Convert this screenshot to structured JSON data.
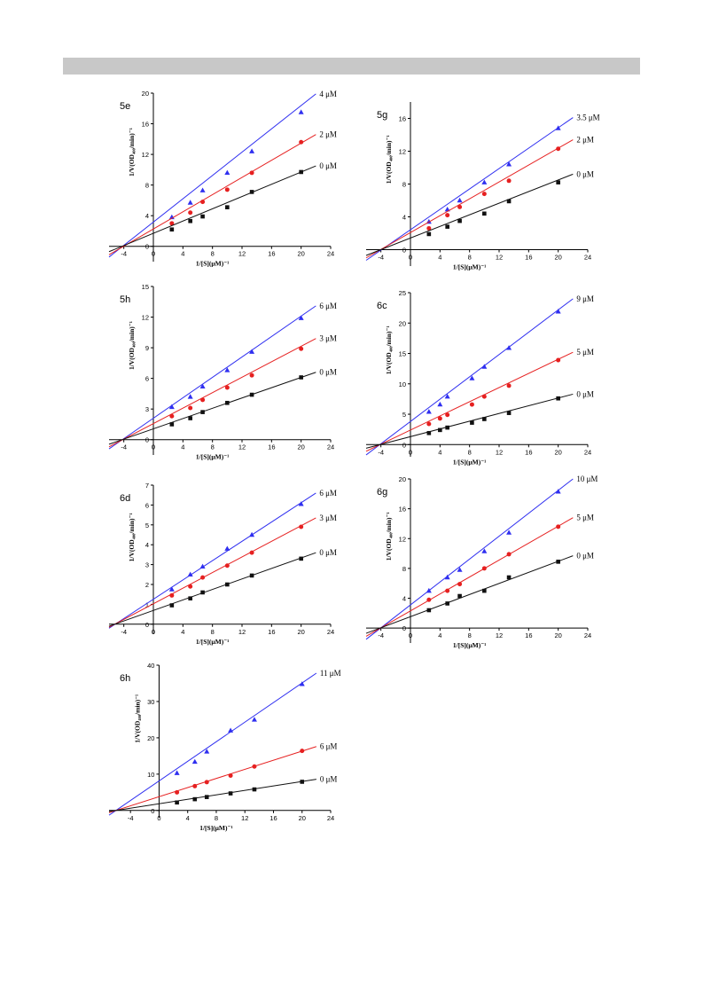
{
  "header": {
    "color": "#c8c8c8"
  },
  "colors": {
    "blue": "#2f2ff0",
    "red": "#e62020",
    "black": "#111111",
    "purple": "#a040c0"
  },
  "chart_data": [
    {
      "type": "scatter",
      "panel_label": "5e",
      "xlabel": "1/[S](μM)⁻¹",
      "ylabel": "1/V(OD₄₀₀/min)⁻¹",
      "xlim": [
        -6,
        24
      ],
      "ylim": [
        -2,
        20
      ],
      "xticks": [
        -4,
        0,
        4,
        8,
        12,
        16,
        20,
        24
      ],
      "yticks": [
        0,
        4,
        8,
        12,
        16,
        20
      ],
      "x": [
        2.5,
        5,
        6.67,
        10,
        13.33,
        20
      ],
      "series": [
        {
          "name": "4 μM",
          "marker": "triangle",
          "color": "#2f2ff0",
          "values": [
            3.8,
            5.7,
            7.3,
            9.6,
            12.4,
            17.5
          ],
          "fit_x": [
            -6,
            22
          ],
          "fit_y": [
            -1.4,
            19.9
          ]
        },
        {
          "name": "2 μM",
          "marker": "circle",
          "color": "#e62020",
          "values": [
            3.0,
            4.4,
            5.8,
            7.4,
            9.6,
            13.6
          ],
          "fit_x": [
            -6,
            22
          ],
          "fit_y": [
            -1.1,
            14.6
          ]
        },
        {
          "name": "0 μM",
          "marker": "square",
          "color": "#111111",
          "values": [
            2.2,
            3.3,
            3.9,
            5.1,
            7.1,
            9.7
          ],
          "fit_x": [
            -6,
            22
          ],
          "fit_y": [
            -0.7,
            10.5
          ]
        }
      ]
    },
    {
      "type": "scatter",
      "panel_label": "5g",
      "xlabel": "1/[S](μM)⁻¹",
      "ylabel": "1/V(OD₄₀₀/min)⁻¹",
      "xlim": [
        -6,
        24
      ],
      "ylim": [
        -2,
        18
      ],
      "xticks": [
        -4,
        0,
        4,
        8,
        12,
        16,
        20,
        24
      ],
      "yticks": [
        0,
        4,
        8,
        12,
        16
      ],
      "x": [
        2.5,
        5,
        6.67,
        10,
        13.33,
        20
      ],
      "series": [
        {
          "name": "3.5 μM",
          "marker": "triangle",
          "color": "#2f2ff0",
          "values": [
            3.4,
            4.9,
            6.0,
            8.2,
            10.4,
            14.8
          ],
          "fit_x": [
            -6,
            22
          ],
          "fit_y": [
            -1.3,
            16.1
          ]
        },
        {
          "name": "2 μM",
          "marker": "circle",
          "color": "#e62020",
          "values": [
            2.6,
            4.2,
            5.2,
            6.8,
            8.4,
            12.3
          ],
          "fit_x": [
            -6,
            22
          ],
          "fit_y": [
            -1.0,
            13.4
          ]
        },
        {
          "name": "0 μM",
          "marker": "square",
          "color": "#111111",
          "values": [
            1.9,
            2.8,
            3.5,
            4.4,
            5.9,
            8.2
          ],
          "fit_x": [
            -6,
            22
          ],
          "fit_y": [
            -0.7,
            9.2
          ]
        }
      ]
    },
    {
      "type": "scatter",
      "panel_label": "5h",
      "xlabel": "1/[S](μM)⁻¹",
      "ylabel": "1/V(OD₄₀₀/min)⁻¹",
      "xlim": [
        -6,
        24
      ],
      "ylim": [
        -1.5,
        15
      ],
      "xticks": [
        -4,
        0,
        4,
        8,
        12,
        16,
        20,
        24
      ],
      "yticks": [
        0,
        3,
        6,
        9,
        12,
        15
      ],
      "x": [
        2.5,
        5,
        6.67,
        10,
        13.33,
        20
      ],
      "series": [
        {
          "name": "6 μM",
          "marker": "triangle",
          "color": "#2f2ff0",
          "values": [
            3.2,
            4.2,
            5.2,
            6.8,
            8.6,
            11.9
          ],
          "fit_x": [
            -6,
            22
          ],
          "fit_y": [
            -0.9,
            13.1
          ]
        },
        {
          "name": "3 μM",
          "marker": "circle",
          "color": "#e62020",
          "values": [
            2.3,
            3.1,
            3.9,
            5.1,
            6.3,
            8.9
          ],
          "fit_x": [
            -6,
            22
          ],
          "fit_y": [
            -0.7,
            9.9
          ]
        },
        {
          "name": "0 μM",
          "marker": "square",
          "color": "#111111",
          "values": [
            1.5,
            2.1,
            2.7,
            3.6,
            4.4,
            6.1
          ],
          "fit_x": [
            -6,
            22
          ],
          "fit_y": [
            -0.45,
            6.6
          ]
        }
      ]
    },
    {
      "type": "scatter",
      "panel_label": "6c",
      "xlabel": "1/[S](μM)⁻¹",
      "ylabel": "1/V(OD₄₀₀/min)⁻¹",
      "xlim": [
        -6,
        24
      ],
      "ylim": [
        -2,
        25
      ],
      "xticks": [
        -4,
        0,
        4,
        8,
        12,
        16,
        20,
        24
      ],
      "yticks": [
        0,
        5,
        10,
        15,
        20,
        25
      ],
      "x": [
        2.5,
        4,
        5,
        8.33,
        10,
        13.33,
        20
      ],
      "series": [
        {
          "name": "9 μM",
          "marker": "triangle",
          "color": "#2f2ff0",
          "values": [
            5.4,
            6.6,
            7.9,
            10.9,
            12.8,
            15.9,
            21.9
          ],
          "fit_x": [
            -6,
            22
          ],
          "fit_y": [
            -1.7,
            24.0
          ]
        },
        {
          "name": "5 μM",
          "marker": "circle",
          "color": "#e62020",
          "values": [
            3.4,
            4.3,
            4.9,
            6.6,
            7.9,
            9.7,
            13.9
          ],
          "fit_x": [
            -6,
            22
          ],
          "fit_y": [
            -1.1,
            15.2
          ]
        },
        {
          "name": "0 μM",
          "marker": "square",
          "color": "#111111",
          "values": [
            1.9,
            2.4,
            2.8,
            3.6,
            4.2,
            5.2,
            7.6
          ],
          "fit_x": [
            -6,
            22
          ],
          "fit_y": [
            -0.6,
            8.3
          ]
        }
      ]
    },
    {
      "type": "scatter",
      "panel_label": "6d",
      "xlabel": "1/[S](μM)⁻¹",
      "ylabel": "1/V(OD₄₀₀/min)⁻¹",
      "xlim": [
        -6,
        24
      ],
      "ylim": [
        -0.5,
        7
      ],
      "xticks": [
        -4,
        0,
        4,
        8,
        12,
        16,
        20,
        24
      ],
      "yticks": [
        0,
        1,
        2,
        3,
        4,
        5,
        6,
        7
      ],
      "x": [
        2.5,
        5,
        6.67,
        10,
        13.33,
        20
      ],
      "series": [
        {
          "name": "6 μM",
          "marker": "triangle",
          "color": "#2f2ff0",
          "values": [
            1.75,
            2.5,
            2.9,
            3.8,
            4.5,
            6.05
          ],
          "fit_x": [
            -6,
            22
          ],
          "fit_y": [
            -0.2,
            6.6
          ]
        },
        {
          "name": "3 μM",
          "marker": "circle",
          "color": "#e62020",
          "values": [
            1.45,
            1.9,
            2.35,
            2.95,
            3.6,
            4.9
          ],
          "fit_x": [
            -6,
            22
          ],
          "fit_y": [
            -0.15,
            5.35
          ]
        },
        {
          "name": "0 μM",
          "marker": "square",
          "color": "#111111",
          "values": [
            0.95,
            1.3,
            1.6,
            2.0,
            2.45,
            3.3
          ],
          "fit_x": [
            -6,
            22
          ],
          "fit_y": [
            -0.1,
            3.6
          ]
        }
      ]
    },
    {
      "type": "scatter",
      "panel_label": "6g",
      "xlabel": "1/[S](μM)⁻¹",
      "ylabel": "1/V(OD₄₀₀/min)⁻¹",
      "xlim": [
        -6,
        24
      ],
      "ylim": [
        -2,
        20
      ],
      "xticks": [
        -4,
        0,
        4,
        8,
        12,
        16,
        20,
        24
      ],
      "yticks": [
        0,
        4,
        8,
        12,
        16,
        20
      ],
      "x": [
        2.5,
        5,
        6.67,
        10,
        13.33,
        20
      ],
      "series": [
        {
          "name": "10 μM",
          "marker": "triangle",
          "color": "#2f2ff0",
          "values": [
            5.0,
            6.8,
            7.8,
            10.3,
            12.8,
            18.3
          ],
          "fit_x": [
            -6,
            22
          ],
          "fit_y": [
            -1.5,
            20.0
          ]
        },
        {
          "name": "5 μM",
          "marker": "circle",
          "color": "#e62020",
          "values": [
            3.8,
            5.0,
            5.9,
            8.0,
            9.9,
            13.6
          ],
          "fit_x": [
            -6,
            22
          ],
          "fit_y": [
            -1.1,
            14.8
          ]
        },
        {
          "name": "0 μM",
          "marker": "square",
          "color": "#111111",
          "values": [
            2.4,
            3.3,
            4.3,
            5.0,
            6.8,
            8.9
          ],
          "fit_x": [
            -6,
            22
          ],
          "fit_y": [
            -0.7,
            9.7
          ]
        }
      ]
    },
    {
      "type": "scatter",
      "panel_label": "6h",
      "xlabel": "1/[S](μM)⁻¹",
      "ylabel": "1/V(OD₄₀₀/min)⁻¹",
      "xlim": [
        -7,
        24
      ],
      "ylim": [
        -2,
        40
      ],
      "xticks": [
        -4,
        0,
        4,
        8,
        12,
        16,
        20,
        24
      ],
      "yticks": [
        0,
        10,
        20,
        30,
        40
      ],
      "x": [
        2.5,
        5,
        6.67,
        10,
        13.33,
        20
      ],
      "series": [
        {
          "name": "11 μM",
          "marker": "triangle",
          "color": "#2f2ff0",
          "values": [
            10.3,
            13.4,
            16.2,
            22.0,
            25.0,
            34.8
          ],
          "fit_x": [
            -7,
            22
          ],
          "fit_y": [
            -1.3,
            37.8
          ]
        },
        {
          "name": "6 μM",
          "marker": "circle",
          "color": "#e62020",
          "values": [
            5.0,
            6.7,
            7.8,
            9.6,
            12.1,
            16.4
          ],
          "fit_x": [
            -7,
            22
          ],
          "fit_y": [
            -0.6,
            17.6
          ]
        },
        {
          "name": "0 μM",
          "marker": "square",
          "color": "#111111",
          "values": [
            2.2,
            3.1,
            3.7,
            4.7,
            5.8,
            7.9
          ],
          "fit_x": [
            -7,
            22
          ],
          "fit_y": [
            -0.3,
            8.6
          ]
        }
      ]
    }
  ]
}
